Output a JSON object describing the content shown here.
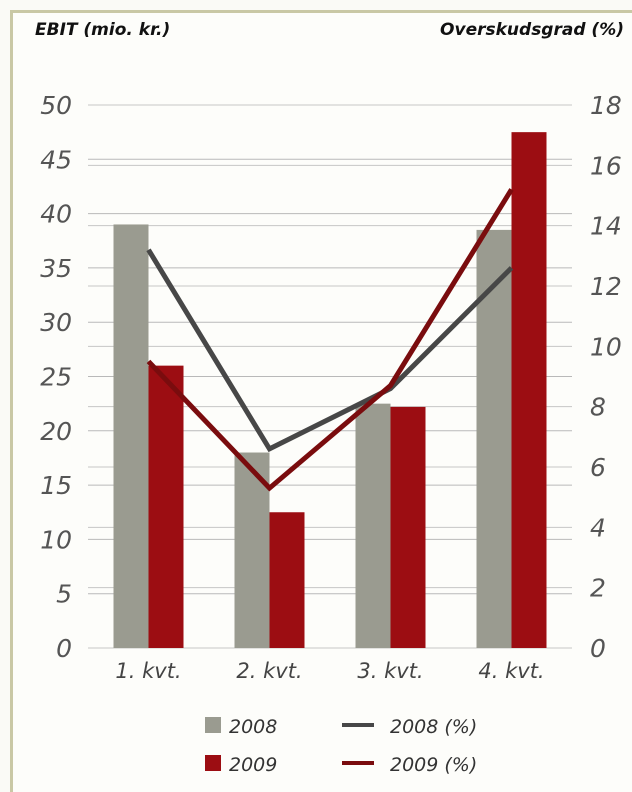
{
  "chart_data": {
    "type": "bar",
    "title": "",
    "ylabel_left": "EBIT (mio. kr.)",
    "ylabel_right": "Overskudsgrad (%)",
    "categories": [
      "1. kvt.",
      "2. kvt.",
      "3. kvt.",
      "4. kvt."
    ],
    "ylim_left": [
      0,
      50
    ],
    "ylim_right": [
      0,
      18
    ],
    "yticks_left": [
      "0",
      "5",
      "10",
      "15",
      "20",
      "25",
      "30",
      "35",
      "40",
      "45",
      "50"
    ],
    "yticks_right": [
      "0",
      "2",
      "4",
      "6",
      "8",
      "10",
      "12",
      "14",
      "16",
      "18"
    ],
    "grid": true,
    "legend_position": "bottom",
    "bar_series": [
      {
        "name": "2008",
        "values": [
          39,
          18,
          22.5,
          38.5
        ],
        "color": "#9a9b90"
      },
      {
        "name": "2009",
        "values": [
          26,
          12.5,
          22.2,
          47.5
        ],
        "color": "#9c0d12"
      }
    ],
    "line_series": [
      {
        "name": "2008 (%)",
        "values": [
          13.2,
          6.6,
          8.6,
          12.6
        ],
        "color": "#474747",
        "axis": "right"
      },
      {
        "name": "2009 (%)",
        "values": [
          9.5,
          5.3,
          8.7,
          15.2
        ],
        "color": "#7a0c0e",
        "axis": "right"
      }
    ]
  }
}
